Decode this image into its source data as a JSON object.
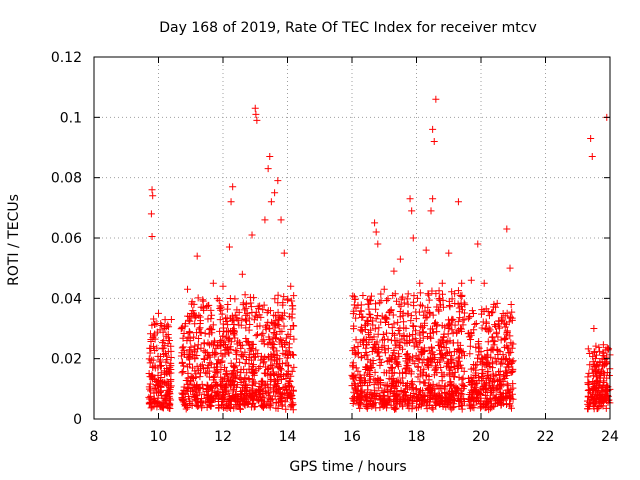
{
  "chart_data": {
    "type": "scatter",
    "title": "Day 168 of 2019, Rate Of TEC Index for receiver mtcv",
    "xlabel": "GPS time / hours",
    "ylabel": "ROTI / TECUs",
    "xlim": [
      8,
      24
    ],
    "ylim": [
      0,
      0.12
    ],
    "x_ticks": [
      "8",
      "10",
      "12",
      "14",
      "16",
      "18",
      "20",
      "22",
      "24"
    ],
    "y_ticks": [
      "0",
      "0.02",
      "0.04",
      "0.06",
      "0.08",
      "0.1",
      "0.12"
    ],
    "grid": true,
    "marker": "+",
    "color": "#ff0000",
    "series": [
      {
        "name": "ROTI",
        "points": [
          [
            9.8,
            0.076
          ],
          [
            9.82,
            0.074
          ],
          [
            9.78,
            0.068
          ],
          [
            9.8,
            0.0605
          ],
          [
            10.0,
            0.035
          ],
          [
            10.1,
            0.031
          ],
          [
            10.4,
            0.033
          ],
          [
            10.9,
            0.043
          ],
          [
            11.1,
            0.038
          ],
          [
            11.2,
            0.054
          ],
          [
            11.4,
            0.036
          ],
          [
            11.7,
            0.045
          ],
          [
            12.0,
            0.044
          ],
          [
            12.2,
            0.057
          ],
          [
            12.25,
            0.072
          ],
          [
            12.3,
            0.077
          ],
          [
            12.6,
            0.048
          ],
          [
            12.9,
            0.061
          ],
          [
            13.0,
            0.103
          ],
          [
            13.02,
            0.101
          ],
          [
            13.05,
            0.099
          ],
          [
            13.3,
            0.066
          ],
          [
            13.4,
            0.083
          ],
          [
            13.45,
            0.087
          ],
          [
            13.5,
            0.072
          ],
          [
            13.6,
            0.075
          ],
          [
            13.7,
            0.079
          ],
          [
            13.8,
            0.066
          ],
          [
            13.9,
            0.055
          ],
          [
            14.1,
            0.044
          ],
          [
            16.2,
            0.022
          ],
          [
            16.5,
            0.038
          ],
          [
            16.7,
            0.065
          ],
          [
            16.75,
            0.062
          ],
          [
            16.8,
            0.058
          ],
          [
            17.0,
            0.043
          ],
          [
            17.3,
            0.049
          ],
          [
            17.5,
            0.053
          ],
          [
            17.8,
            0.073
          ],
          [
            17.85,
            0.069
          ],
          [
            17.9,
            0.06
          ],
          [
            18.1,
            0.045
          ],
          [
            18.3,
            0.056
          ],
          [
            18.5,
            0.096
          ],
          [
            18.55,
            0.092
          ],
          [
            18.6,
            0.106
          ],
          [
            18.5,
            0.073
          ],
          [
            18.45,
            0.069
          ],
          [
            18.8,
            0.045
          ],
          [
            19.0,
            0.055
          ],
          [
            19.3,
            0.072
          ],
          [
            19.4,
            0.045
          ],
          [
            19.7,
            0.046
          ],
          [
            19.9,
            0.058
          ],
          [
            20.1,
            0.045
          ],
          [
            20.4,
            0.038
          ],
          [
            20.8,
            0.063
          ],
          [
            20.9,
            0.05
          ],
          [
            23.4,
            0.093
          ],
          [
            23.45,
            0.087
          ],
          [
            23.5,
            0.03
          ],
          [
            23.9,
            0.1
          ],
          [
            23.8,
            0.021
          ]
        ]
      }
    ],
    "dense_clusters": [
      {
        "x_range": [
          9.7,
          10.4
        ],
        "y_range": [
          0.003,
          0.03
        ]
      },
      {
        "x_range": [
          10.7,
          14.2
        ],
        "y_range": [
          0.003,
          0.038
        ]
      },
      {
        "x_range": [
          16.0,
          19.5
        ],
        "y_range": [
          0.003,
          0.04
        ]
      },
      {
        "x_range": [
          19.6,
          21.0
        ],
        "y_range": [
          0.003,
          0.035
        ]
      },
      {
        "x_range": [
          23.3,
          24.0
        ],
        "y_range": [
          0.003,
          0.022
        ]
      }
    ]
  }
}
